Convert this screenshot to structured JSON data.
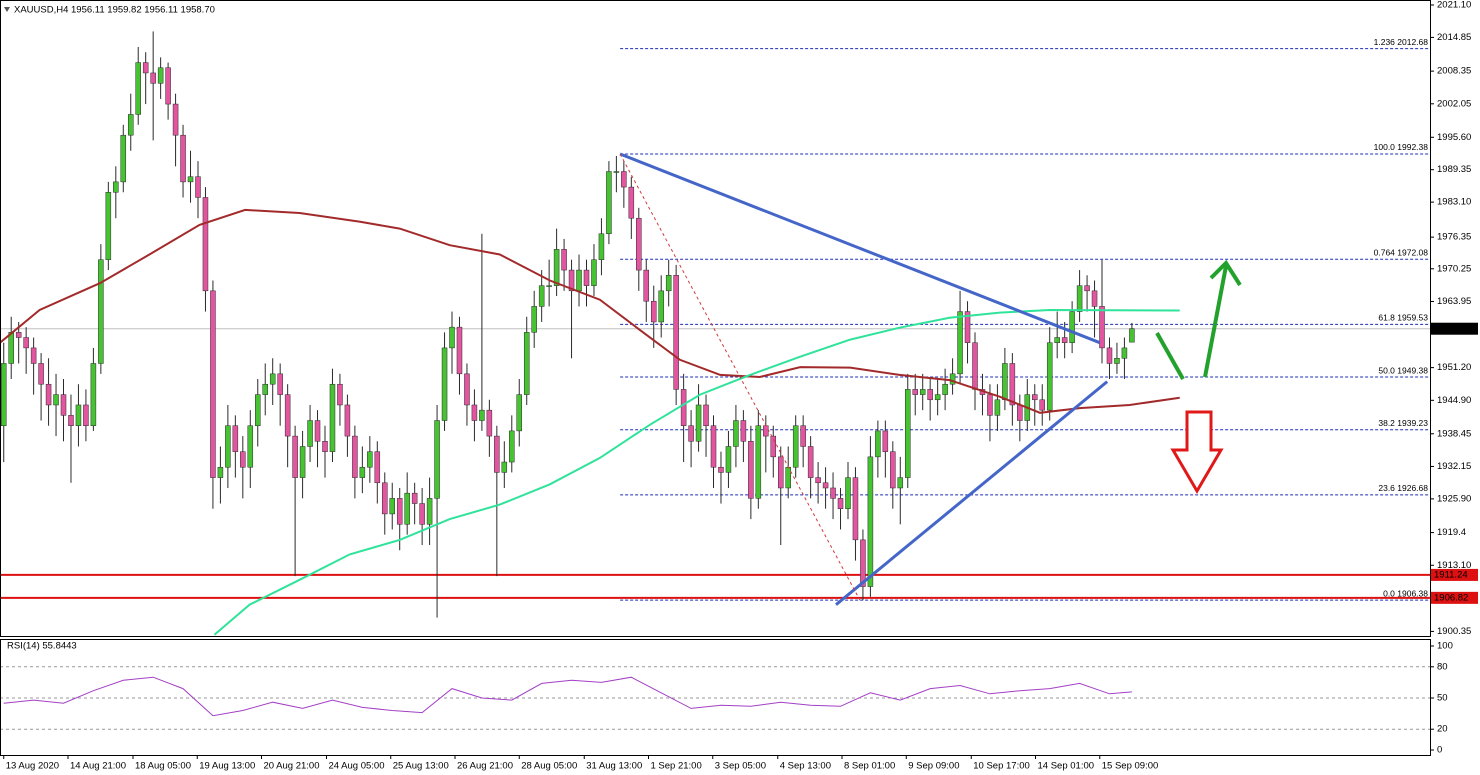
{
  "chart_data": {
    "type": "candlestick",
    "title": "XAUUSD,H4  1956.11 1959.82 1956.11 1958.70",
    "up_color": "#46c232",
    "down_color": "#e2559f",
    "wick_color": "#2a2a2a",
    "xlim": [
      -0.5,
      190.9
    ],
    "xticks": [
      {
        "value": 0,
        "label": "13 Aug 2020"
      },
      {
        "value": 8.6,
        "label": "14 Aug 21:00"
      },
      {
        "value": 17.3,
        "label": "18 Aug 05:00"
      },
      {
        "value": 25.9,
        "label": "19 Aug 13:00"
      },
      {
        "value": 34.5,
        "label": "20 Aug 21:00"
      },
      {
        "value": 43.2,
        "label": "24 Aug 05:00"
      },
      {
        "value": 51.8,
        "label": "25 Aug 13:00"
      },
      {
        "value": 60.4,
        "label": "26 Aug 21:00"
      },
      {
        "value": 69.0,
        "label": "28 Aug 05:00"
      },
      {
        "value": 77.7,
        "label": "31 Aug 13:00"
      },
      {
        "value": 86.3,
        "label": "1 Sep 21:00"
      },
      {
        "value": 94.9,
        "label": "3 Sep 05:00"
      },
      {
        "value": 103.6,
        "label": "4 Sep 13:00"
      },
      {
        "value": 112.2,
        "label": "8 Sep 01:00"
      },
      {
        "value": 120.8,
        "label": "9 Sep 09:00"
      },
      {
        "value": 129.5,
        "label": "10 Sep 17:00"
      },
      {
        "value": 138.1,
        "label": "14 Sep 01:00"
      },
      {
        "value": 146.7,
        "label": "15 Sep 09:00"
      }
    ],
    "ylim": [
      1899.66,
      2022.06
    ],
    "yticks": [
      {
        "value": 2021.1,
        "label": "2021.10"
      },
      2014.85,
      2008.35,
      2002.05,
      {
        "value": 1995.6,
        "label": "1995.60"
      },
      1989.35,
      {
        "value": 1983.1,
        "label": "1983.10"
      },
      1976.35,
      1970.25,
      1963.95,
      {
        "value": 1951.2,
        "label": "1951.20"
      },
      {
        "value": 1944.9,
        "label": "1944.90"
      },
      1938.45,
      1932.15,
      {
        "value": 1925.9,
        "label": "1925.90"
      },
      1919.4,
      {
        "value": 1913.1,
        "label": "1913.10"
      },
      1900.35
    ],
    "candles": [
      [
        1940,
        1956,
        1933,
        1952
      ],
      [
        1952,
        1961,
        1949,
        1958
      ],
      [
        1958,
        1960,
        1952,
        1957
      ],
      [
        1957,
        1959,
        1950,
        1955
      ],
      [
        1955,
        1957,
        1946,
        1952
      ],
      [
        1952,
        1954,
        1941,
        1948
      ],
      [
        1948,
        1953,
        1940,
        1944
      ],
      [
        1944,
        1950,
        1938,
        1946
      ],
      [
        1946,
        1949,
        1937,
        1942
      ],
      [
        1942,
        1946,
        1929,
        1940
      ],
      [
        1940,
        1948,
        1936,
        1944
      ],
      [
        1944,
        1947,
        1937,
        1940
      ],
      [
        1940,
        1955,
        1939,
        1952
      ],
      [
        1952,
        1975,
        1950,
        1972
      ],
      [
        1972,
        1987,
        1970,
        1985
      ],
      [
        1985,
        1990,
        1980,
        1987
      ],
      [
        1987,
        1998,
        1985,
        1996
      ],
      [
        1996,
        2004,
        1993,
        2000
      ],
      [
        2000,
        2013,
        1998,
        2010
      ],
      [
        2010,
        2012,
        2002,
        2008
      ],
      [
        2008,
        2016,
        1995,
        2006
      ],
      [
        2006,
        2011,
        2003,
        2009
      ],
      [
        2009,
        2010,
        1999,
        2002
      ],
      [
        2002,
        2004,
        1990,
        1996
      ],
      [
        1996,
        1998,
        1984,
        1987
      ],
      [
        1987,
        1993,
        1983,
        1988
      ],
      [
        1988,
        1991,
        1980,
        1984
      ],
      [
        1984,
        1986,
        1962,
        1966
      ],
      [
        1966,
        1968,
        1924,
        1930
      ],
      [
        1930,
        1936,
        1925,
        1932
      ],
      [
        1932,
        1944,
        1928,
        1940
      ],
      [
        1940,
        1942,
        1930,
        1935
      ],
      [
        1935,
        1938,
        1926,
        1932
      ],
      [
        1932,
        1943,
        1928,
        1940
      ],
      [
        1940,
        1949,
        1936,
        1946
      ],
      [
        1946,
        1952,
        1942,
        1948
      ],
      [
        1948,
        1953,
        1944,
        1950
      ],
      [
        1950,
        1952,
        1940,
        1946
      ],
      [
        1946,
        1948,
        1932,
        1938
      ],
      [
        1938,
        1940,
        1911,
        1930
      ],
      [
        1930,
        1939,
        1926,
        1936
      ],
      [
        1936,
        1944,
        1933,
        1941
      ],
      [
        1941,
        1943,
        1932,
        1937
      ],
      [
        1937,
        1940,
        1930,
        1935
      ],
      [
        1935,
        1951,
        1933,
        1948
      ],
      [
        1948,
        1950,
        1940,
        1944
      ],
      [
        1944,
        1946,
        1934,
        1938
      ],
      [
        1938,
        1940,
        1926,
        1930
      ],
      [
        1930,
        1936,
        1927,
        1932
      ],
      [
        1932,
        1938,
        1929,
        1935
      ],
      [
        1935,
        1937,
        1925,
        1929
      ],
      [
        1929,
        1931,
        1919,
        1923
      ],
      [
        1923,
        1929,
        1920,
        1926
      ],
      [
        1926,
        1928,
        1916,
        1921
      ],
      [
        1921,
        1931,
        1919,
        1927
      ],
      [
        1927,
        1929,
        1921,
        1925
      ],
      [
        1925,
        1928,
        1917,
        1921
      ],
      [
        1921,
        1930,
        1917,
        1926
      ],
      [
        1926,
        1944,
        1903,
        1941
      ],
      [
        1941,
        1958,
        1939,
        1955
      ],
      [
        1955,
        1962,
        1950,
        1959
      ],
      [
        1959,
        1961,
        1946,
        1950
      ],
      [
        1950,
        1952,
        1940,
        1944
      ],
      [
        1944,
        1947,
        1937,
        1941
      ],
      [
        1941,
        1977,
        1939,
        1943
      ],
      [
        1943,
        1945,
        1934,
        1938
      ],
      [
        1938,
        1940,
        1911,
        1931
      ],
      [
        1931,
        1937,
        1928,
        1933
      ],
      [
        1933,
        1942,
        1931,
        1939
      ],
      [
        1939,
        1949,
        1936,
        1946
      ],
      [
        1946,
        1961,
        1944,
        1958
      ],
      [
        1958,
        1966,
        1955,
        1963
      ],
      [
        1963,
        1970,
        1960,
        1967
      ],
      [
        1967,
        1972,
        1963,
        1967
      ],
      [
        1967,
        1978,
        1965,
        1974
      ],
      [
        1974,
        1976,
        1966,
        1970
      ],
      [
        1970,
        1972,
        1953,
        1966
      ],
      [
        1966,
        1973,
        1963,
        1970
      ],
      [
        1970,
        1972,
        1963,
        1967
      ],
      [
        1967,
        1975,
        1965,
        1972
      ],
      [
        1972,
        1980,
        1969,
        1977
      ],
      [
        1977,
        1991,
        1975,
        1989
      ],
      [
        1989,
        1992,
        1985,
        1989
      ],
      [
        1989,
        1991,
        1982,
        1986
      ],
      [
        1986,
        1988,
        1976,
        1980
      ],
      [
        1980,
        1982,
        1966,
        1970
      ],
      [
        1970,
        1972,
        1960,
        1964
      ],
      [
        1964,
        1967,
        1955,
        1960
      ],
      [
        1960,
        1969,
        1957,
        1966
      ],
      [
        1966,
        1972,
        1963,
        1969
      ],
      [
        1969,
        1971,
        1944,
        1947
      ],
      [
        1947,
        1950,
        1933,
        1940
      ],
      [
        1940,
        1943,
        1932,
        1937
      ],
      [
        1937,
        1948,
        1935,
        1944
      ],
      [
        1944,
        1946,
        1934,
        1940
      ],
      [
        1940,
        1942,
        1928,
        1932
      ],
      [
        1932,
        1935,
        1925,
        1931
      ],
      [
        1931,
        1939,
        1928,
        1936
      ],
      [
        1936,
        1944,
        1932,
        1941
      ],
      [
        1941,
        1943,
        1933,
        1937
      ],
      [
        1937,
        1940,
        1922,
        1926
      ],
      [
        1926,
        1943,
        1924,
        1940
      ],
      [
        1940,
        1942,
        1931,
        1938
      ],
      [
        1938,
        1940,
        1930,
        1934
      ],
      [
        1934,
        1936,
        1917,
        1928
      ],
      [
        1928,
        1936,
        1926,
        1932
      ],
      [
        1932,
        1942,
        1930,
        1940
      ],
      [
        1940,
        1942,
        1932,
        1936
      ],
      [
        1936,
        1938,
        1926,
        1930
      ],
      [
        1930,
        1933,
        1925,
        1929
      ],
      [
        1929,
        1932,
        1924,
        1928
      ],
      [
        1928,
        1931,
        1922,
        1926
      ],
      [
        1926,
        1928,
        1920,
        1924
      ],
      [
        1924,
        1933,
        1922,
        1930
      ],
      [
        1930,
        1932,
        1914,
        1918
      ],
      [
        1918,
        1920,
        1906.38,
        1909
      ],
      [
        1909,
        1938,
        1907,
        1934
      ],
      [
        1934,
        1941,
        1930,
        1939
      ],
      [
        1939,
        1941,
        1930,
        1935
      ],
      [
        1935,
        1937,
        1924,
        1928
      ],
      [
        1928,
        1934,
        1921,
        1930
      ],
      [
        1930,
        1950,
        1928,
        1947
      ],
      [
        1947,
        1950,
        1942,
        1946
      ],
      [
        1946,
        1950,
        1943,
        1947
      ],
      [
        1947,
        1949,
        1941,
        1945
      ],
      [
        1945,
        1949,
        1942,
        1946
      ],
      [
        1946,
        1951,
        1943,
        1948
      ],
      [
        1948,
        1953,
        1946,
        1950
      ],
      [
        1950,
        1966,
        1948,
        1962
      ],
      [
        1962,
        1964,
        1952,
        1956
      ],
      [
        1956,
        1958,
        1943,
        1947
      ],
      [
        1947,
        1950,
        1942,
        1946
      ],
      [
        1946,
        1948,
        1937,
        1942
      ],
      [
        1942,
        1948,
        1939,
        1945
      ],
      [
        1945,
        1955,
        1943,
        1952
      ],
      [
        1952,
        1954,
        1940,
        1944
      ],
      [
        1944,
        1946,
        1937,
        1941
      ],
      [
        1941,
        1949,
        1939,
        1946
      ],
      [
        1946,
        1948,
        1940,
        1945
      ],
      [
        1945,
        1948,
        1940,
        1943
      ],
      [
        1943,
        1959,
        1941,
        1956
      ],
      [
        1956,
        1962,
        1953,
        1957
      ],
      [
        1957,
        1960,
        1953,
        1956
      ],
      [
        1956,
        1964,
        1954,
        1962
      ],
      [
        1962,
        1970,
        1960,
        1967
      ],
      [
        1967,
        1969,
        1962,
        1966
      ],
      [
        1966,
        1968,
        1957,
        1963
      ],
      [
        1963,
        1972,
        1952,
        1955
      ],
      [
        1955,
        1957,
        1949,
        1952
      ],
      [
        1952,
        1956,
        1950,
        1953
      ],
      [
        1953,
        1957,
        1949,
        1955
      ],
      [
        1956.11,
        1959.82,
        1956.11,
        1958.7
      ]
    ],
    "moving_averages": [
      {
        "color": "#a32a2a",
        "x": [
          -0.5,
          4.8,
          12.9,
          19.5,
          26.2,
          32.3,
          39.6,
          47.7,
          53,
          59.7,
          66.4,
          73.1,
          79.8,
          85.1,
          90.5,
          95.9,
          101.2,
          106.6,
          113.3,
          119.9,
          126.6,
          133.3,
          138.7,
          144,
          150.7,
          157.4
        ],
        "values": [
          1956,
          1962.3,
          1967.5,
          1973,
          1978.7,
          1981.6,
          1981,
          1979.3,
          1978,
          1974.8,
          1973,
          1968,
          1964.3,
          1958.5,
          1952.7,
          1949.8,
          1949.4,
          1951.3,
          1951.2,
          1949.8,
          1948.8,
          1945.6,
          1942.5,
          1943.4,
          1944,
          1945.4
        ]
      },
      {
        "color": "#2fe39a",
        "x": [
          28.2,
          32.9,
          39.6,
          46.3,
          53,
          59.7,
          66.4,
          73.1,
          79.8,
          86.5,
          93.2,
          99.9,
          106.6,
          113.3,
          119.9,
          126.6,
          133.3,
          140,
          157.4
        ],
        "values": [
          1899.7,
          1905.5,
          1910.3,
          1915.2,
          1918,
          1922,
          1924.8,
          1928.7,
          1933.8,
          1940.2,
          1946,
          1949.8,
          1953.3,
          1956.6,
          1958.9,
          1960.8,
          1961.8,
          1962.3,
          1962.2
        ]
      }
    ],
    "trendlines": [
      {
        "color": "#4566c9",
        "x": [
          82.5,
          146.7
        ],
        "y": [
          1992.38,
          1956
        ]
      },
      {
        "color": "#4566c9",
        "x": [
          111.4,
          147.7
        ],
        "y": [
          1905.5,
          1948.5
        ]
      },
      {
        "color": "#d23a3a",
        "x": [
          82.5,
          114.6
        ],
        "y": [
          1992.38,
          1906.38
        ],
        "dashed": true
      }
    ],
    "fibonacci": {
      "color": "#1e2fb8",
      "start": 82.5,
      "levels": [
        {
          "label": "1.236 2012.68",
          "value": 2012.68
        },
        {
          "label": "100.0 1992.38",
          "value": 1992.38
        },
        {
          "label": "0.764 1972.08",
          "value": 1972.08
        },
        {
          "label": "61.8 1959.53",
          "value": 1959.53
        },
        {
          "label": "50.0 1949.38",
          "value": 1949.38
        },
        {
          "label": "38.2 1939.23",
          "value": 1939.23
        },
        {
          "label": "23.6 1926.68",
          "value": 1926.68
        },
        {
          "label": "0.0 1906.38",
          "value": 1906.38
        }
      ]
    },
    "hlines": [
      {
        "value": 1958.7,
        "label": "1958.70",
        "color": "#c0c0c0",
        "tag_color": "#000000"
      },
      {
        "value": 1911.24,
        "color": "#dd1111",
        "tag_color": "#dd1111"
      },
      {
        "value": 1906.82,
        "color": "#dd1111",
        "tag_color": "#dd1111"
      }
    ],
    "rsi": {
      "title": "RSI(14) 55.8443",
      "color": "#a33fc6",
      "ylim": [
        0,
        100
      ],
      "yticks": [
        0,
        20,
        50,
        80,
        100
      ],
      "levels": [
        20,
        50,
        80
      ],
      "x": [
        0,
        4,
        8,
        12,
        16,
        20,
        24,
        28,
        32,
        36,
        40,
        44,
        48,
        52,
        56,
        60,
        64,
        68,
        72,
        76,
        80,
        84,
        88,
        92,
        96,
        100,
        104,
        108,
        112,
        116,
        120,
        124,
        128,
        132,
        136,
        140,
        144,
        148,
        151
      ],
      "values": [
        45,
        48,
        45,
        57,
        67,
        70,
        59,
        33,
        38,
        46,
        40,
        48,
        41,
        38,
        36,
        59,
        50,
        48,
        64,
        67,
        65,
        70,
        55,
        40,
        43,
        42,
        46,
        43,
        42,
        55,
        48,
        59,
        62,
        54,
        57,
        59,
        64,
        54,
        55.8443
      ]
    }
  }
}
